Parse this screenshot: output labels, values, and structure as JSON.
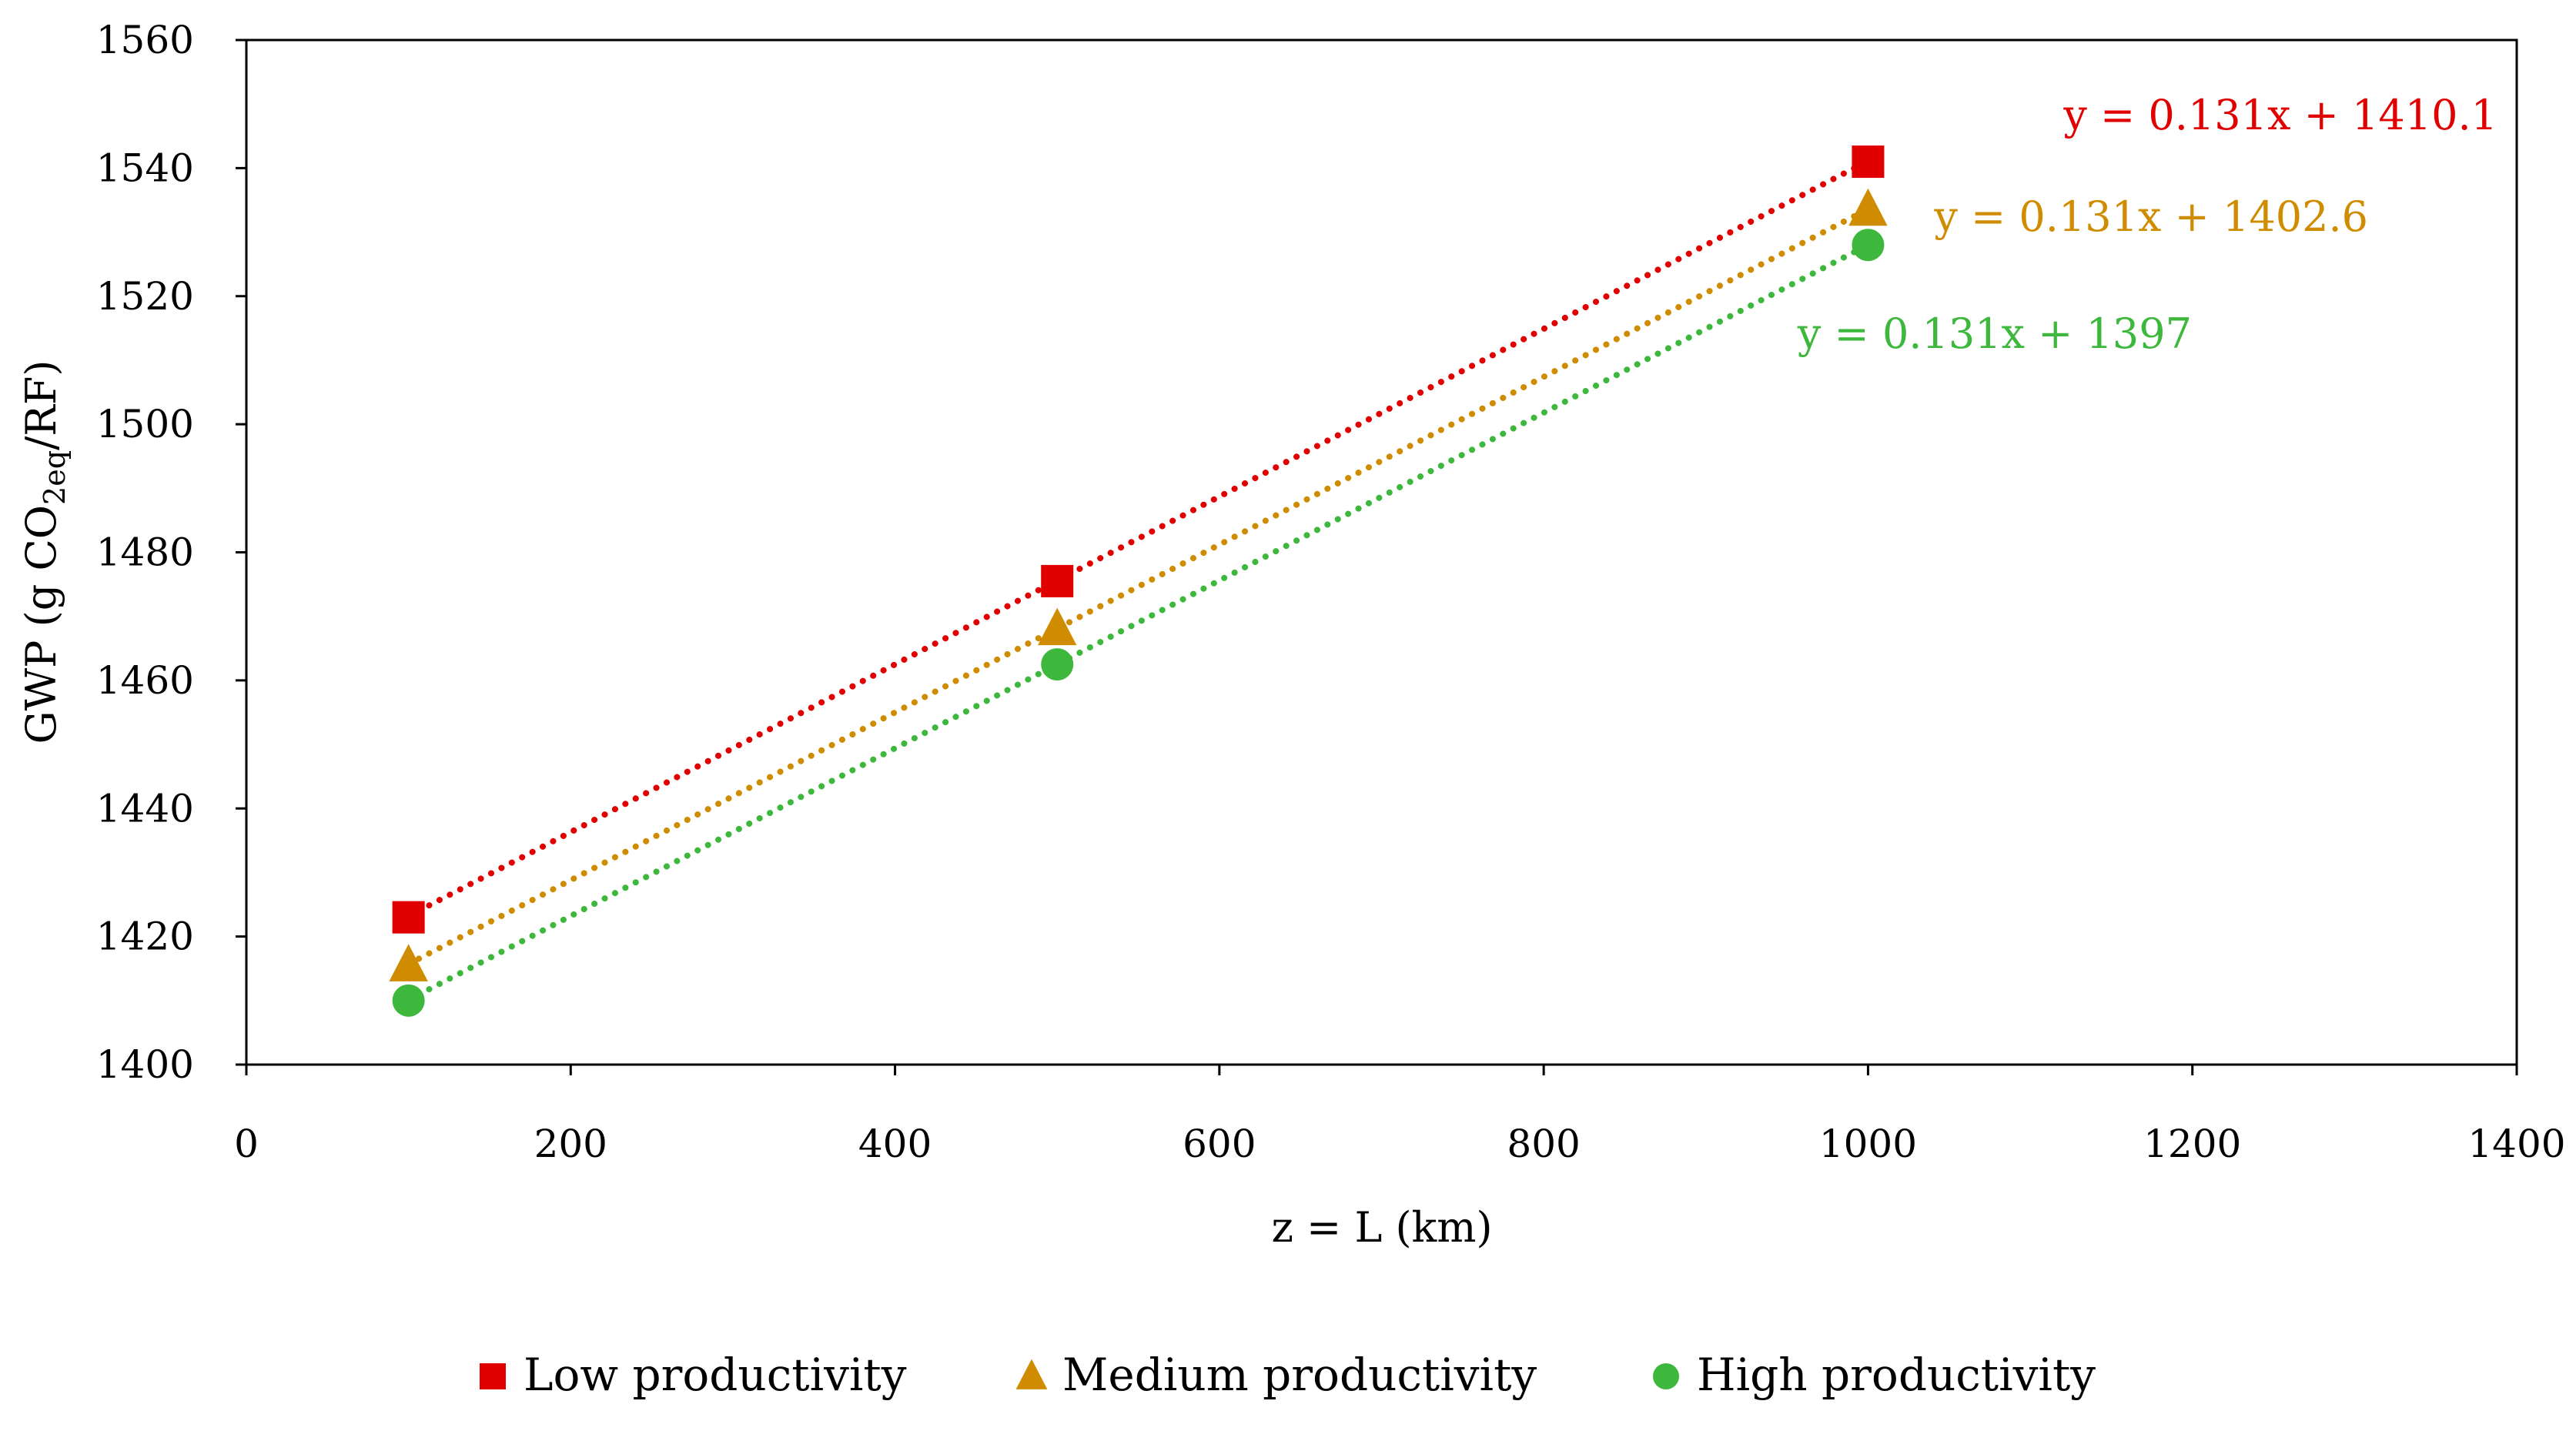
{
  "chart_data": {
    "type": "scatter",
    "xlabel": "z = L (km)",
    "ylabel": {
      "prefix": "GWP (g CO",
      "sub1": "2",
      "sub2": "eq",
      "suffix": "/RF)"
    },
    "xlim": [
      0,
      1400
    ],
    "ylim": [
      1400,
      1560
    ],
    "x_ticks": [
      0,
      200,
      400,
      600,
      800,
      1000,
      1200,
      1400
    ],
    "y_ticks": [
      1400,
      1420,
      1440,
      1460,
      1480,
      1500,
      1520,
      1540,
      1560
    ],
    "grid": false,
    "legend_position": "bottom",
    "x": [
      100,
      500,
      1000
    ],
    "series": [
      {
        "name": "Low productivity",
        "marker": "square",
        "color": "#e00000",
        "values": [
          1423,
          1475.5,
          1541
        ],
        "trendline": {
          "slope": 0.131,
          "intercept": 1410.1,
          "label": "y = 0.131x + 1410.1",
          "label_anchor": "top-right"
        }
      },
      {
        "name": "Medium productivity",
        "marker": "triangle",
        "color": "#d08c00",
        "values": [
          1415.5,
          1468,
          1533.5
        ],
        "trendline": {
          "slope": 0.131,
          "intercept": 1402.6,
          "label": "y = 0.131x + 1402.6",
          "label_anchor": "right"
        }
      },
      {
        "name": "High productivity",
        "marker": "circle",
        "color": "#3db83d",
        "values": [
          1410,
          1462.5,
          1528
        ],
        "trendline": {
          "slope": 0.131,
          "intercept": 1397,
          "label": "y = 0.131x + 1397",
          "label_anchor": "below-right"
        }
      }
    ]
  }
}
